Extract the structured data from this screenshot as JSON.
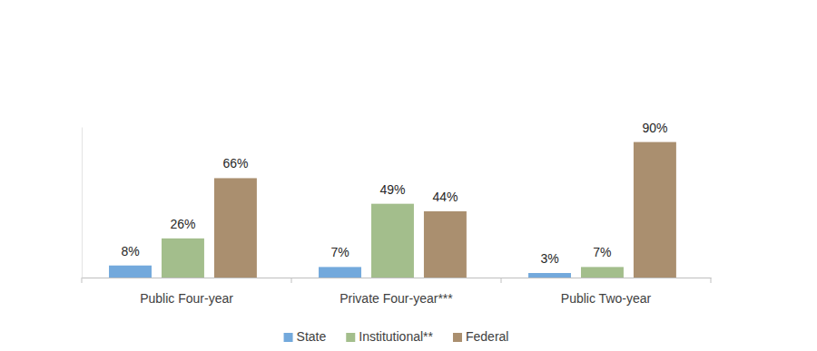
{
  "chart_data": {
    "type": "bar",
    "categories": [
      "Public Four-year",
      "Private Four-year***",
      "Public Two-year"
    ],
    "series": [
      {
        "name": "State",
        "color": "#73a9dc",
        "values": [
          8,
          7,
          3
        ],
        "value_labels": [
          "8%",
          "7%",
          "3%"
        ]
      },
      {
        "name": "Institutional**",
        "color": "#a3be8c",
        "values": [
          26,
          49,
          7
        ],
        "value_labels": [
          "26%",
          "49%",
          "7%"
        ]
      },
      {
        "name": "Federal",
        "color": "#aa8f6f",
        "values": [
          66,
          44,
          90
        ],
        "value_labels": [
          "66%",
          "44%",
          "90%"
        ]
      }
    ],
    "ylim": [
      0,
      100
    ],
    "data_labels": true,
    "tick_labels": "x",
    "legend": "bottom",
    "grid": false
  }
}
